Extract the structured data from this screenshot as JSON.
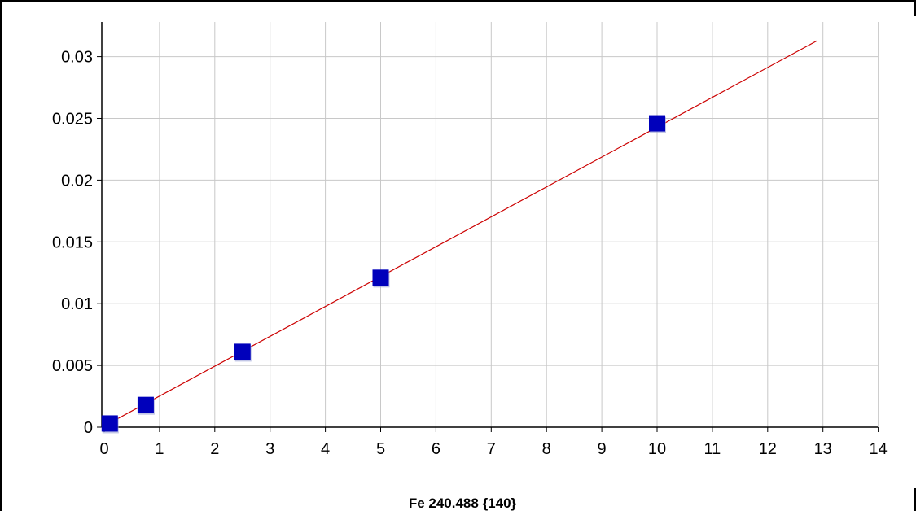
{
  "chart_data": {
    "type": "scatter",
    "title": "",
    "caption": "Fe 240.488 {140}",
    "xlabel": "",
    "ylabel": "",
    "xlim": [
      0,
      14
    ],
    "ylim": [
      0,
      0.033
    ],
    "x_ticks": [
      0,
      1,
      2,
      3,
      4,
      5,
      6,
      7,
      8,
      9,
      10,
      11,
      12,
      13,
      14
    ],
    "x_tick_labels": [
      "0",
      "1",
      "2",
      "3",
      "4",
      "5",
      "6",
      "7",
      "8",
      "9",
      "10",
      "11",
      "12",
      "13",
      "14"
    ],
    "y_ticks": [
      0,
      0.005,
      0.01,
      0.015,
      0.02,
      0.025,
      0.03
    ],
    "y_tick_labels": [
      "0",
      "0.005",
      "0.01",
      "0.015",
      "0.02",
      "0.025",
      "0.03"
    ],
    "grid": true,
    "legend": "none",
    "series": [
      {
        "kind": "points",
        "marker": "square",
        "color": "#0000bb",
        "points": [
          {
            "x": 0.1,
            "y": 0.0003
          },
          {
            "x": 0.75,
            "y": 0.0018
          },
          {
            "x": 2.5,
            "y": 0.0061
          },
          {
            "x": 5.0,
            "y": 0.0121
          },
          {
            "x": 10.0,
            "y": 0.0246
          }
        ]
      },
      {
        "kind": "fit-line",
        "color": "#cc0000",
        "points": [
          {
            "x": 0.0,
            "y": 0.0001
          },
          {
            "x": 12.9,
            "y": 0.0313
          }
        ]
      }
    ]
  },
  "colors": {
    "grid": "#c8c8c8",
    "axis": "#000000",
    "frame": "#000000",
    "marker": "#0000bb",
    "fit_line": "#cc0000"
  }
}
